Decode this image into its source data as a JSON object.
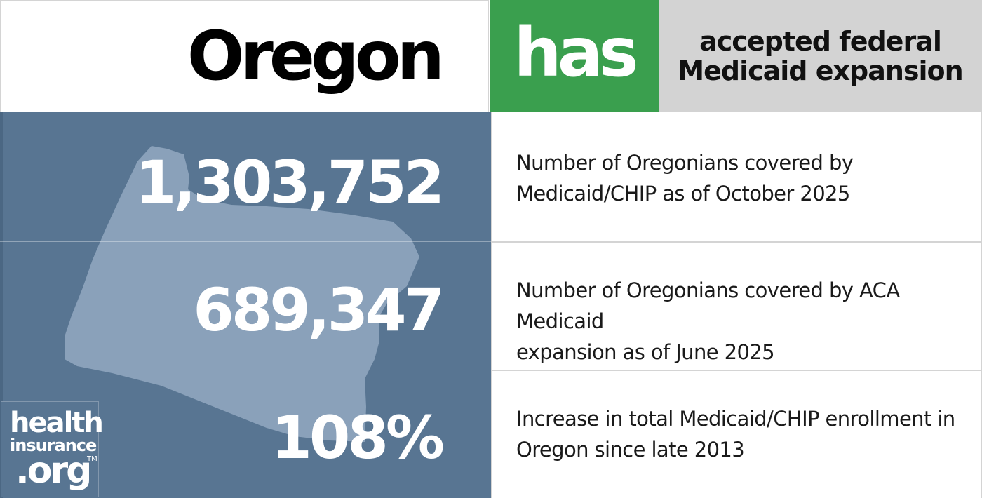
{
  "header": {
    "state": "Oregon",
    "status": "has",
    "status_color": "#3a9f4e",
    "expansion_line1": "accepted federal",
    "expansion_line2": "Medicaid expansion"
  },
  "stats": [
    {
      "value": "1,303,752",
      "description_line1": "Number of Oregonians covered by",
      "description_line2": "Medicaid/CHIP as of October 2025"
    },
    {
      "value": "689,347",
      "description_line1": "Number of Oregonians covered by ACA Medicaid",
      "description_line2": "expansion as of June 2025"
    },
    {
      "value": "108%",
      "description_line1": "Increase in total Medicaid/CHIP enrollment in",
      "description_line2": "Oregon since late 2013"
    }
  ],
  "logo": {
    "line1": "health",
    "line2": "insurance",
    "line3": ".org",
    "tm": "TM"
  },
  "colors": {
    "panel_blue": "#587592",
    "state_shape": "#8aa1ba",
    "header_gray": "#d3d3d3"
  }
}
